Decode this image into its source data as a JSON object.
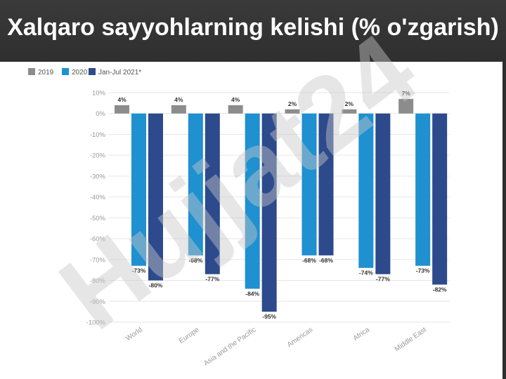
{
  "slide": {
    "title": "Xalqaro sayyohlarning kelishi (% o'zgarish)"
  },
  "colors": {
    "header_bg": "#353535",
    "series_2019": "#8c8c8c",
    "series_2020": "#1f90d0",
    "series_2021": "#2c4a8c",
    "watermark_gray": "#c8c8c8",
    "watermark_purple": "#b7a6ea"
  },
  "watermark": {
    "text": "Hujjat24"
  },
  "chart_data": {
    "type": "bar",
    "title": "",
    "xlabel": "",
    "ylabel": "",
    "ylim": [
      -100,
      10
    ],
    "yticks": [
      10,
      0,
      -10,
      -20,
      -30,
      -40,
      -50,
      -60,
      -70,
      -80,
      -90,
      -100
    ],
    "ytick_labels": [
      "10%",
      "0%",
      "-10%",
      "-20%",
      "-30%",
      "-40%",
      "-50%",
      "-60%",
      "-70%",
      "-80%",
      "-90%",
      "-100%"
    ],
    "grid": true,
    "legend_position": "top-left",
    "categories": [
      "World",
      "Europe",
      "Asia and the Pacific",
      "Americas",
      "Africa",
      "Middle East"
    ],
    "series": [
      {
        "name": "2019",
        "values": [
          4,
          4,
          4,
          2,
          2,
          7
        ],
        "labels": [
          "4%",
          "4%",
          "4%",
          "2%",
          "2%",
          "7%"
        ]
      },
      {
        "name": "2020",
        "values": [
          -73,
          -68,
          -84,
          -68,
          -74,
          -73
        ],
        "labels": [
          "-73%",
          "-68%",
          "-84%",
          "-68%",
          "-74%",
          "-73%"
        ]
      },
      {
        "name": "Jan-Jul 2021*",
        "values": [
          -80,
          -77,
          -95,
          -68,
          -77,
          -82
        ],
        "labels": [
          "-80%",
          "-77%",
          "-95%",
          "-68%",
          "-77%",
          "-82%"
        ]
      }
    ]
  }
}
